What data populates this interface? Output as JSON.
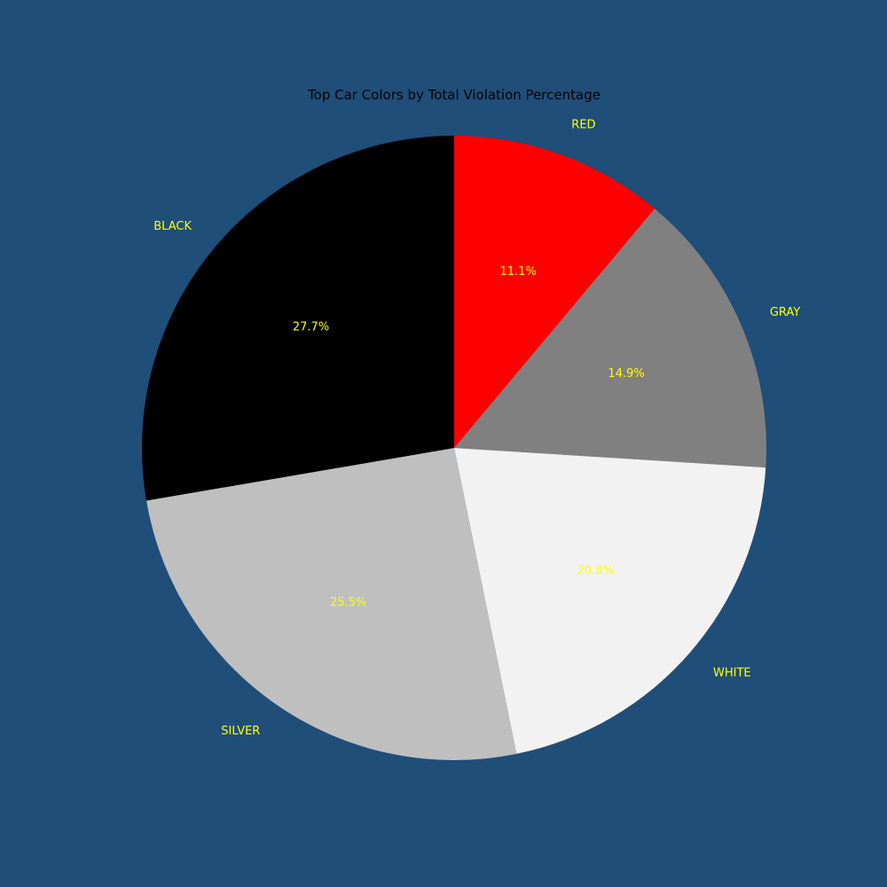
{
  "page": {
    "background": "#1f4e79"
  },
  "chart_data": {
    "type": "pie",
    "title": "Top Car Colors by Total Violation Percentage",
    "start_angle_deg": 90,
    "direction": "clockwise",
    "label_color": "#ffff00",
    "categories": [
      "RED",
      "GRAY",
      "WHITE",
      "SILVER",
      "BLACK"
    ],
    "values": [
      11.1,
      14.9,
      20.8,
      25.5,
      27.7
    ],
    "value_labels": [
      "11.1%",
      "14.9%",
      "20.8%",
      "25.5%",
      "27.7%"
    ],
    "colors": [
      "#ff0000",
      "#808080",
      "#f2f2f2",
      "#bfbfbf",
      "#000000"
    ],
    "legend": "none"
  }
}
